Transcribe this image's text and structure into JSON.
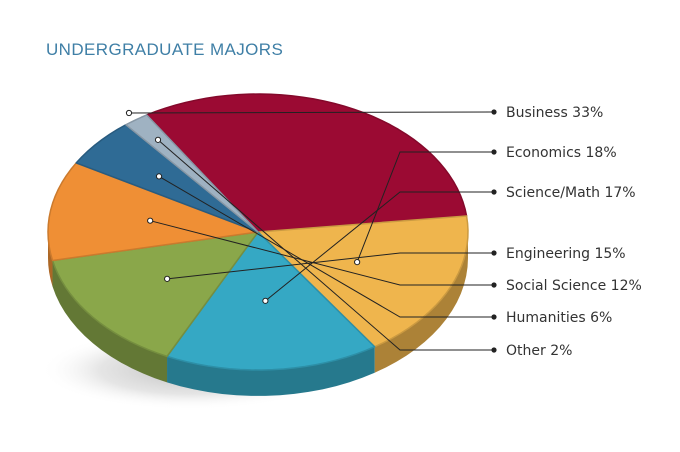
{
  "chart_data": {
    "type": "pie",
    "title": "UNDERGRADUATE MAJORS",
    "label_suffix": "%",
    "slices": [
      {
        "name": "Business",
        "value": 33,
        "color": "#9b0a33"
      },
      {
        "name": "Economics",
        "value": 18,
        "color": "#efb54d"
      },
      {
        "name": "Science/Math",
        "value": 17,
        "color": "#35a8c4"
      },
      {
        "name": "Engineering",
        "value": 15,
        "color": "#8aa74a"
      },
      {
        "name": "Social Science",
        "value": 12,
        "color": "#ef8f35"
      },
      {
        "name": "Humanities",
        "value": 6,
        "color": "#2f6b95"
      },
      {
        "name": "Other",
        "value": 2,
        "color": "#9fb2c2"
      }
    ]
  }
}
